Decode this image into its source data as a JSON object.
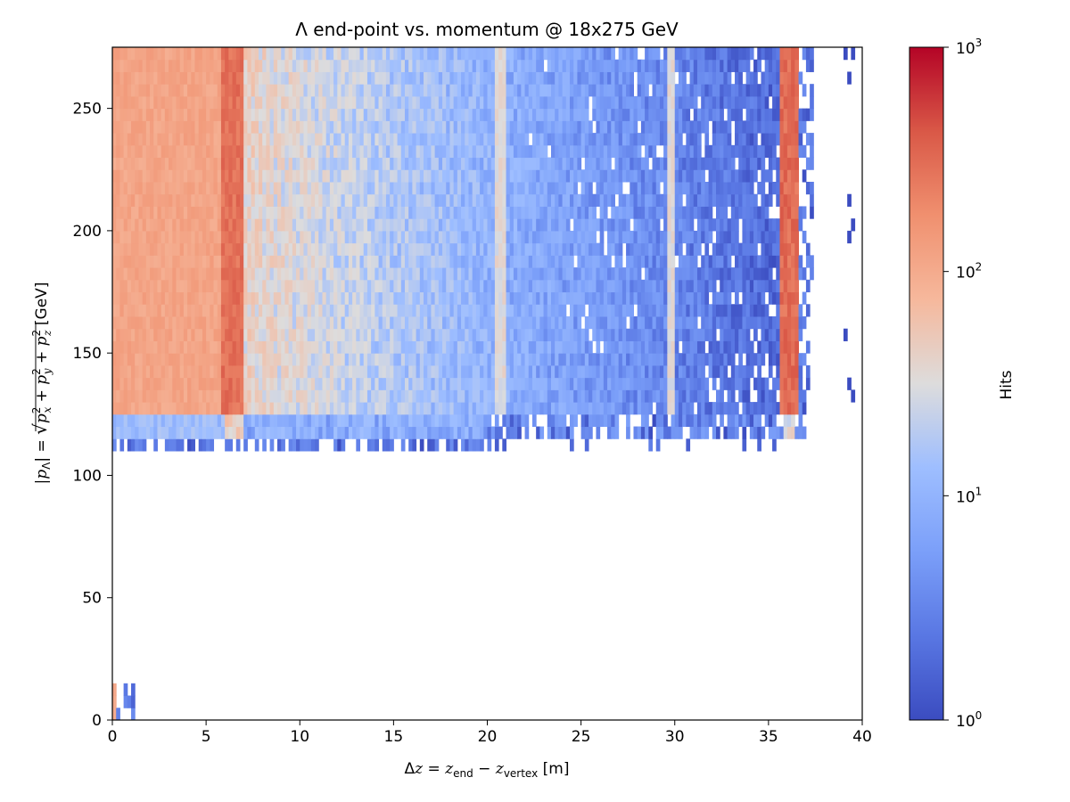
{
  "chart_data": {
    "type": "heatmap",
    "title": "Λ end-point vs. momentum @ 18x275 GeV",
    "xlabel": {
      "delta": "Δ",
      "z": "z",
      "eq": " = ",
      "z2": "z",
      "end": "end",
      "minus": " − ",
      "z3": "z",
      "vertex": "vertex",
      "unit": " [m]"
    },
    "ylabel": {
      "lhs": "|p",
      "lambda": "Λ",
      "rhs": "| = ",
      "sqrt": "√",
      "px": "p",
      "x": "x",
      "py": "p",
      "y": "y",
      "pz": "p",
      "zsub": "z",
      "two": "2",
      "plus": " + ",
      "unit": " [GeV]"
    },
    "xlim": [
      0,
      40
    ],
    "ylim": [
      0,
      275
    ],
    "x_ticks": [
      "0",
      "5",
      "10",
      "15",
      "20",
      "25",
      "30",
      "35",
      "40"
    ],
    "y_ticks": [
      "0",
      "50",
      "100",
      "150",
      "200",
      "250"
    ],
    "colorbar": {
      "label": "Hits",
      "scale": "log",
      "range": [
        1,
        1000
      ],
      "tick_base": [
        "10",
        "10",
        "10",
        "10"
      ],
      "tick_exp": [
        "0",
        "1",
        "2",
        "3"
      ],
      "colormap": "coolwarm"
    },
    "regions": [
      {
        "x": [
          0,
          6
        ],
        "y": [
          126,
          275
        ],
        "hits": 110
      },
      {
        "x": [
          6,
          7
        ],
        "y": [
          126,
          275
        ],
        "hits": 300
      },
      {
        "x": [
          7,
          20
        ],
        "y": [
          126,
          275
        ],
        "hits": 35
      },
      {
        "x": [
          20,
          35.7
        ],
        "y": [
          126,
          275
        ],
        "hits": "1-20"
      },
      {
        "x": [
          35.7,
          36.5
        ],
        "y": [
          126,
          275
        ],
        "hits": 350
      },
      {
        "x": [
          36.5,
          37.5
        ],
        "y": [
          126,
          275
        ],
        "hits": "1-5"
      },
      {
        "x": [
          0,
          37
        ],
        "y": [
          111,
          126
        ],
        "hits": "1-20"
      },
      {
        "x": [
          0,
          1.2
        ],
        "y": [
          0,
          16
        ],
        "hits": "1-100"
      }
    ],
    "legend": "colorbar-right"
  }
}
